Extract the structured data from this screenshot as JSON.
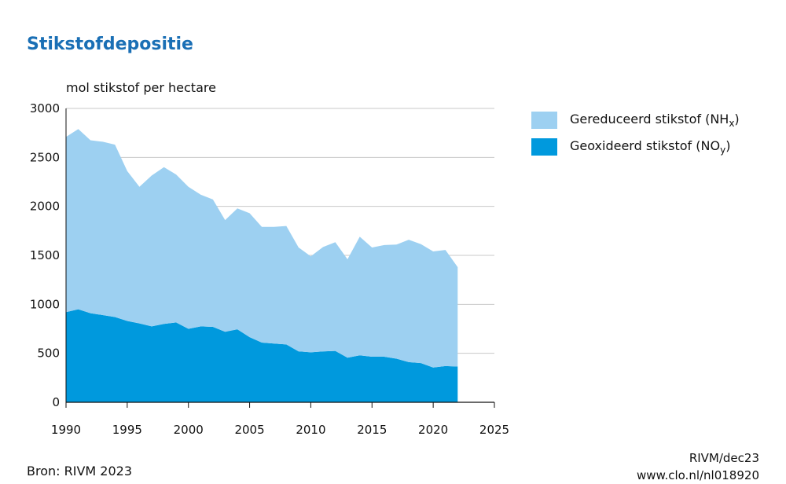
{
  "title": "Stikstofdepositie",
  "unit_label": "mol stikstof per hectare",
  "legend": {
    "nhx_text": "Gereduceerd stikstof (NH",
    "nhx_sub": "x",
    "noy_text": "Geoxideerd stikstof (NO",
    "noy_sub": "y",
    "close": ")"
  },
  "source": "Bron: RIVM 2023",
  "credit_line1": "RIVM/dec23",
  "credit_line2": "www.clo.nl/nl018920",
  "chart_data": {
    "type": "area",
    "stacked": true,
    "x": [
      1990,
      1991,
      1992,
      1993,
      1994,
      1995,
      1996,
      1997,
      1998,
      1999,
      2000,
      2001,
      2002,
      2003,
      2004,
      2005,
      2006,
      2007,
      2008,
      2009,
      2010,
      2011,
      2012,
      2013,
      2014,
      2015,
      2016,
      2017,
      2018,
      2019,
      2020,
      2021,
      2022
    ],
    "series": [
      {
        "name": "Geoxideerd stikstof (NOy)",
        "color": "#0099dd",
        "values": [
          920,
          950,
          910,
          890,
          870,
          830,
          805,
          775,
          800,
          815,
          750,
          775,
          770,
          720,
          745,
          665,
          610,
          600,
          590,
          520,
          510,
          520,
          525,
          455,
          480,
          465,
          465,
          445,
          410,
          400,
          355,
          370,
          365
        ]
      },
      {
        "name": "Gereduceerd stikstof (NHx)",
        "color": "#9dd0f1",
        "values": [
          1790,
          1840,
          1765,
          1770,
          1760,
          1530,
          1395,
          1540,
          1600,
          1510,
          1450,
          1345,
          1300,
          1140,
          1235,
          1265,
          1180,
          1190,
          1210,
          1060,
          980,
          1065,
          1110,
          1005,
          1210,
          1115,
          1140,
          1165,
          1250,
          1215,
          1185,
          1185,
          1015
        ]
      }
    ],
    "xlim": [
      1990,
      2025
    ],
    "ylim": [
      0,
      3000
    ],
    "xticks": [
      1990,
      1995,
      2000,
      2005,
      2010,
      2015,
      2020,
      2025
    ],
    "yticks": [
      0,
      500,
      1000,
      1500,
      2000,
      2500,
      3000
    ],
    "grid": "horizontal",
    "legend_position": "right"
  }
}
